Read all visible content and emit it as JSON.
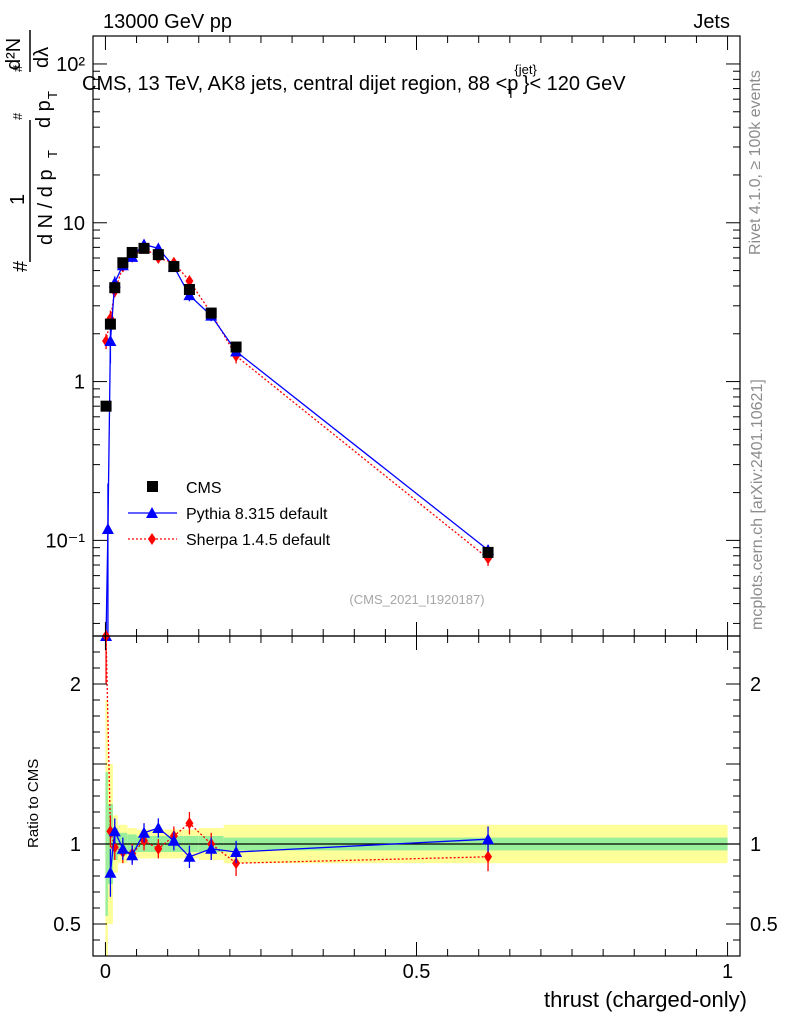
{
  "header": {
    "left": "13000 GeV pp",
    "right": "Jets"
  },
  "side_text": {
    "rivet": "Rivet 4.1.0, ≥ 100k events",
    "mcplots": "mcplots.cern.ch [arXiv:2401.10621]"
  },
  "chart_data": [
    {
      "type": "scatter",
      "panel": "main",
      "yscale": "log",
      "title_prefix": "CMS, 13 TeV, AK8 jets, central dijet region, 88 <p",
      "title_sup": "{jet}",
      "title_sub": "T",
      "title_suffix": "}< 120 GeV",
      "ylabel_pieces": [
        "#",
        "1",
        "d N / d p",
        "T",
        "#",
        "d p",
        "T",
        "#",
        "d²N",
        "dλ"
      ],
      "xlim": [
        -0.02,
        1.02
      ],
      "ylim": [
        0.025,
        150
      ],
      "y_tick_labels": [
        "10⁻¹",
        "1",
        "10",
        "10²"
      ],
      "y_tick_values": [
        0.1,
        1,
        10,
        100
      ],
      "watermark": "(CMS_2021_I1920187)",
      "legend": [
        "CMS",
        "Pythia 8.315 default",
        "Sherpa 1.4.5 default"
      ],
      "series": [
        {
          "name": "CMS",
          "color": "#000000",
          "marker": "square",
          "x": [
            0.001,
            0.008,
            0.015,
            0.028,
            0.043,
            0.062,
            0.085,
            0.11,
            0.135,
            0.17,
            0.21,
            0.615
          ],
          "y": [
            0.7,
            2.3,
            3.9,
            5.6,
            6.5,
            6.9,
            6.3,
            5.3,
            3.8,
            2.7,
            1.65,
            0.084
          ],
          "yerr": [
            0.03,
            0.08,
            0.1,
            0.12,
            0.12,
            0.12,
            0.12,
            0.1,
            0.08,
            0.06,
            0.05,
            0.005
          ]
        },
        {
          "name": "Pythia 8.315 default",
          "color": "#0000ff",
          "marker": "triangle",
          "x": [
            0.001,
            0.004,
            0.008,
            0.015,
            0.028,
            0.043,
            0.062,
            0.085,
            0.11,
            0.135,
            0.17,
            0.21,
            0.615
          ],
          "y": [
            0.025,
            0.118,
            1.8,
            4.2,
            5.4,
            6.1,
            7.3,
            6.9,
            5.3,
            3.5,
            2.6,
            1.55,
            0.087
          ],
          "yerr": [
            0.0,
            0.11,
            0.5,
            0.4,
            0.4,
            0.4,
            0.4,
            0.4,
            0.3,
            0.3,
            0.2,
            0.1,
            0.006
          ]
        },
        {
          "name": "Sherpa 1.4.5 default",
          "color": "#ff0000",
          "marker": "diamond",
          "x": [
            0.001,
            0.008,
            0.015,
            0.028,
            0.043,
            0.062,
            0.085,
            0.11,
            0.135,
            0.17,
            0.21,
            0.615
          ],
          "y": [
            1.8,
            2.5,
            3.7,
            5.3,
            6.1,
            7.0,
            6.0,
            5.6,
            4.3,
            2.7,
            1.45,
            0.077
          ],
          "yerr": [
            0.2,
            0.3,
            0.3,
            0.4,
            0.4,
            0.4,
            0.4,
            0.3,
            0.3,
            0.2,
            0.15,
            0.008
          ]
        }
      ]
    },
    {
      "type": "scatter",
      "panel": "ratio",
      "ylabel": "Ratio to CMS",
      "xlabel": "thrust (charged-only)",
      "xlim": [
        -0.02,
        1.02
      ],
      "ylim": [
        0.3,
        2.3
      ],
      "x_tick_labels": [
        "0",
        "0.5",
        "1"
      ],
      "x_tick_values": [
        0,
        0.5,
        1
      ],
      "y_tick_labels": [
        "0.5",
        "1",
        "2"
      ],
      "y_tick_values": [
        0.5,
        1,
        2
      ],
      "bands": {
        "edges": [
          0.0,
          0.004,
          0.012,
          0.02,
          0.035,
          0.05,
          0.075,
          0.095,
          0.125,
          0.15,
          0.19,
          0.23,
          1.0
        ],
        "green": [
          0.45,
          0.25,
          0.1,
          0.07,
          0.06,
          0.05,
          0.05,
          0.05,
          0.05,
          0.05,
          0.04,
          0.04
        ],
        "yellow": [
          0.9,
          0.5,
          0.18,
          0.12,
          0.1,
          0.09,
          0.09,
          0.09,
          0.09,
          0.1,
          0.12,
          0.12
        ]
      },
      "series": [
        {
          "name": "Pythia 8.315 default",
          "color": "#0000ff",
          "marker": "triangle",
          "x": [
            0.008,
            0.015,
            0.028,
            0.043,
            0.062,
            0.085,
            0.11,
            0.135,
            0.17,
            0.21,
            0.615
          ],
          "y": [
            0.82,
            1.08,
            0.97,
            0.93,
            1.07,
            1.1,
            1.02,
            0.92,
            0.97,
            0.95,
            1.03
          ],
          "yerr": [
            0.15,
            0.08,
            0.07,
            0.06,
            0.06,
            0.06,
            0.06,
            0.07,
            0.07,
            0.07,
            0.08
          ]
        },
        {
          "name": "Sherpa 1.4.5 default",
          "color": "#ff0000",
          "marker": "diamond",
          "x": [
            0.001,
            0.008,
            0.015,
            0.028,
            0.043,
            0.062,
            0.085,
            0.11,
            0.135,
            0.17,
            0.21,
            0.615
          ],
          "y": [
            2.3,
            1.08,
            0.98,
            0.95,
            0.94,
            1.02,
            0.97,
            1.05,
            1.13,
            1.0,
            0.88,
            0.92
          ],
          "yerr": [
            0.3,
            0.1,
            0.08,
            0.07,
            0.06,
            0.06,
            0.06,
            0.06,
            0.07,
            0.07,
            0.08,
            0.09
          ]
        }
      ]
    }
  ]
}
